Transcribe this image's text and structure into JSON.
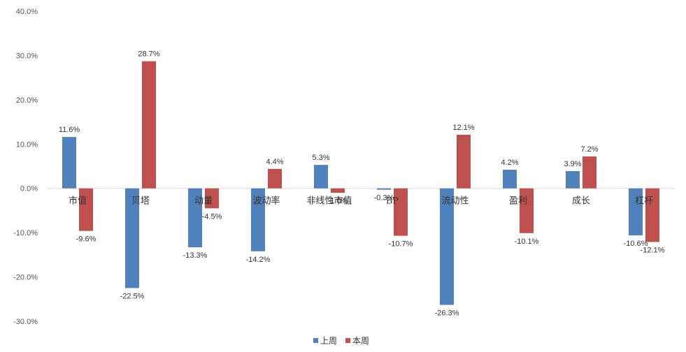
{
  "chart_data": {
    "type": "bar",
    "categories": [
      "市值",
      "贝塔",
      "动量",
      "波动率",
      "非线性市值",
      "BP",
      "流动性",
      "盈利",
      "成长",
      "杠杆"
    ],
    "series": [
      {
        "name": "上周",
        "color": "#4f81bd",
        "values": [
          11.6,
          -22.5,
          -13.3,
          -14.2,
          5.3,
          -0.3,
          -26.3,
          4.2,
          3.9,
          -10.6
        ]
      },
      {
        "name": "本周",
        "color": "#c0504d",
        "values": [
          -9.6,
          28.7,
          -4.5,
          4.4,
          -1.0,
          -10.7,
          12.1,
          -10.1,
          7.2,
          -12.1
        ]
      }
    ],
    "data_labels": [
      [
        "11.6%",
        "-22.5%",
        "-13.3%",
        "-14.2%",
        "5.3%",
        "-0.3%",
        "-26.3%",
        "4.2%",
        "3.9%",
        "-10.6%"
      ],
      [
        "-9.6%",
        "28.7%",
        "-4.5%",
        "4.4%",
        "-1.0%",
        "-10.7%",
        "12.1%",
        "-10.1%",
        "7.2%",
        "-12.1%"
      ]
    ],
    "yticks": [
      "40.0%",
      "30.0%",
      "20.0%",
      "10.0%",
      "0.0%",
      "-10.0%",
      "-20.0%",
      "-30.0%"
    ],
    "ylim": [
      -30,
      40
    ],
    "grid": false,
    "legend_position": "bottom"
  }
}
